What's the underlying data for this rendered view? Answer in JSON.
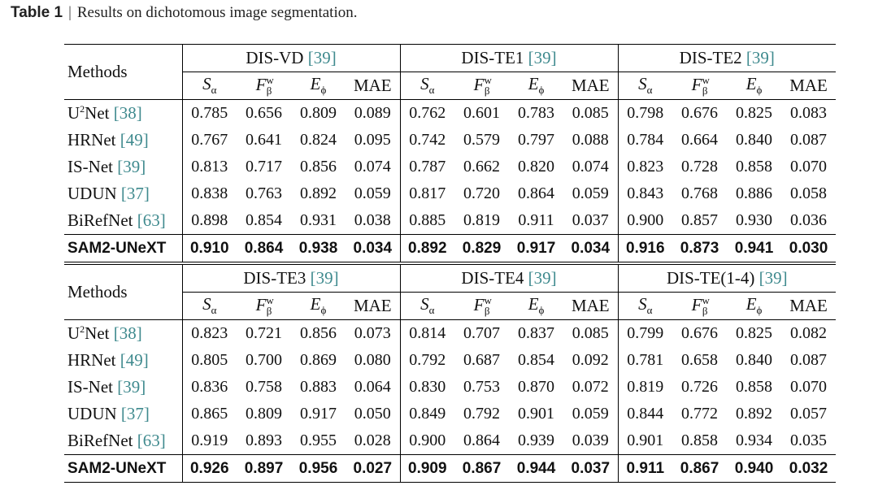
{
  "caption": {
    "label": "Table 1",
    "separator": "|",
    "text": "Results on dichotomous image segmentation."
  },
  "methods_header": "Methods",
  "metrics": [
    "S",
    "F",
    "E",
    "MAE"
  ],
  "metric_subscripts": [
    "α",
    "β",
    "ϕ"
  ],
  "metric_superscript": "w",
  "blocks": [
    {
      "groups": [
        {
          "name": "DIS-VD",
          "cite": "[39]"
        },
        {
          "name": "DIS-TE1",
          "cite": "[39]"
        },
        {
          "name": "DIS-TE2",
          "cite": "[39]"
        }
      ],
      "rows": [
        {
          "method": "U",
          "method_sup": "2",
          "method_rest": "Net",
          "cite": "[38]",
          "values": [
            "0.785",
            "0.656",
            "0.809",
            "0.089",
            "0.762",
            "0.601",
            "0.783",
            "0.085",
            "0.798",
            "0.676",
            "0.825",
            "0.083"
          ]
        },
        {
          "method": "HRNet",
          "cite": "[49]",
          "values": [
            "0.767",
            "0.641",
            "0.824",
            "0.095",
            "0.742",
            "0.579",
            "0.797",
            "0.088",
            "0.784",
            "0.664",
            "0.840",
            "0.087"
          ]
        },
        {
          "method": "IS-Net",
          "cite": "[39]",
          "values": [
            "0.813",
            "0.717",
            "0.856",
            "0.074",
            "0.787",
            "0.662",
            "0.820",
            "0.074",
            "0.823",
            "0.728",
            "0.858",
            "0.070"
          ]
        },
        {
          "method": "UDUN",
          "cite": "[37]",
          "values": [
            "0.838",
            "0.763",
            "0.892",
            "0.059",
            "0.817",
            "0.720",
            "0.864",
            "0.059",
            "0.843",
            "0.768",
            "0.886",
            "0.058"
          ]
        },
        {
          "method": "BiRefNet",
          "cite": "[63]",
          "values": [
            "0.898",
            "0.854",
            "0.931",
            "0.038",
            "0.885",
            "0.819",
            "0.911",
            "0.037",
            "0.900",
            "0.857",
            "0.930",
            "0.036"
          ]
        },
        {
          "method": "SAM2-UNeXT",
          "cite": "",
          "values": [
            "0.910",
            "0.864",
            "0.938",
            "0.034",
            "0.892",
            "0.829",
            "0.917",
            "0.034",
            "0.916",
            "0.873",
            "0.941",
            "0.030"
          ]
        }
      ]
    },
    {
      "groups": [
        {
          "name": "DIS-TE3",
          "cite": "[39]"
        },
        {
          "name": "DIS-TE4",
          "cite": "[39]"
        },
        {
          "name": "DIS-TE(1-4)",
          "cite": "[39]"
        }
      ],
      "rows": [
        {
          "method": "U",
          "method_sup": "2",
          "method_rest": "Net",
          "cite": "[38]",
          "values": [
            "0.823",
            "0.721",
            "0.856",
            "0.073",
            "0.814",
            "0.707",
            "0.837",
            "0.085",
            "0.799",
            "0.676",
            "0.825",
            "0.082"
          ]
        },
        {
          "method": "HRNet",
          "cite": "[49]",
          "values": [
            "0.805",
            "0.700",
            "0.869",
            "0.080",
            "0.792",
            "0.687",
            "0.854",
            "0.092",
            "0.781",
            "0.658",
            "0.840",
            "0.087"
          ]
        },
        {
          "method": "IS-Net",
          "cite": "[39]",
          "values": [
            "0.836",
            "0.758",
            "0.883",
            "0.064",
            "0.830",
            "0.753",
            "0.870",
            "0.072",
            "0.819",
            "0.726",
            "0.858",
            "0.070"
          ]
        },
        {
          "method": "UDUN",
          "cite": "[37]",
          "values": [
            "0.865",
            "0.809",
            "0.917",
            "0.050",
            "0.849",
            "0.792",
            "0.901",
            "0.059",
            "0.844",
            "0.772",
            "0.892",
            "0.057"
          ]
        },
        {
          "method": "BiRefNet",
          "cite": "[63]",
          "values": [
            "0.919",
            "0.893",
            "0.955",
            "0.028",
            "0.900",
            "0.864",
            "0.939",
            "0.039",
            "0.901",
            "0.858",
            "0.934",
            "0.035"
          ]
        },
        {
          "method": "SAM2-UNeXT",
          "cite": "",
          "values": [
            "0.926",
            "0.897",
            "0.956",
            "0.027",
            "0.909",
            "0.867",
            "0.944",
            "0.037",
            "0.911",
            "0.867",
            "0.940",
            "0.032"
          ]
        }
      ]
    }
  ],
  "bold_row_index": 5,
  "colors": {
    "citation": "#3f8a8e",
    "text": "#111111",
    "rule": "#000000"
  }
}
